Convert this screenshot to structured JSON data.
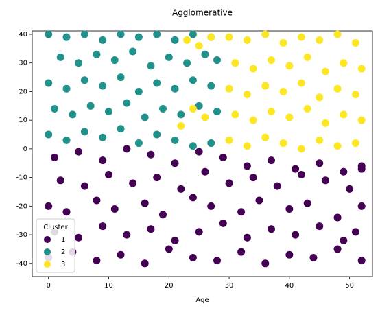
{
  "chart_data": {
    "type": "scatter",
    "title": "Agglomerative",
    "x_label": "Age",
    "xlim": [
      -2.7,
      53.8
    ],
    "ylim": [
      -44.6,
      41.2
    ],
    "xticks": [
      0,
      10,
      20,
      30,
      40,
      50
    ],
    "yticks": [
      -40,
      -30,
      -20,
      -10,
      0,
      10,
      20,
      30,
      40
    ],
    "legend_title": "Cluster",
    "legend_position": "lower left",
    "series": [
      {
        "name": "1",
        "color": "#440154",
        "x": [
          0,
          4,
          8,
          12,
          16,
          20,
          24,
          28,
          32,
          36,
          40,
          44,
          48,
          52,
          1,
          5,
          9,
          13,
          17,
          21,
          25,
          29,
          33,
          37,
          41,
          45,
          49,
          51,
          0,
          3,
          8,
          11,
          16,
          19,
          24,
          27,
          32,
          35,
          40,
          43,
          48,
          52,
          2,
          6,
          10,
          14,
          18,
          22,
          26,
          30,
          34,
          38,
          42,
          46,
          50,
          52,
          1,
          5,
          9,
          13,
          17,
          21,
          25,
          29,
          33,
          37,
          41,
          45,
          49,
          52
        ],
        "y": [
          -38,
          -36,
          -39,
          -37,
          -40,
          -35,
          -38,
          -39,
          -36,
          -40,
          -37,
          -38,
          -35,
          -39,
          -29,
          -31,
          -27,
          -30,
          -28,
          -32,
          -29,
          -26,
          -31,
          -28,
          -30,
          -27,
          -32,
          -29,
          -20,
          -22,
          -18,
          -21,
          -19,
          -23,
          -17,
          -20,
          -22,
          -18,
          -21,
          -19,
          -24,
          -20,
          -11,
          -13,
          -9,
          -12,
          -10,
          -14,
          -8,
          -12,
          -10,
          -13,
          -9,
          -11,
          -14,
          -7,
          -3,
          -1,
          -4,
          0,
          -2,
          -5,
          -1,
          -3,
          -6,
          -4,
          -7,
          -5,
          -8,
          -6
        ]
      },
      {
        "name": "2",
        "color": "#21918c",
        "x": [
          0,
          3,
          6,
          9,
          12,
          15,
          18,
          21,
          24,
          27,
          1,
          4,
          7,
          10,
          13,
          16,
          19,
          22,
          25,
          28,
          0,
          3,
          6,
          9,
          12,
          15,
          18,
          21,
          24,
          27,
          2,
          5,
          8,
          11,
          14,
          17,
          20,
          23,
          26,
          28,
          0,
          3,
          6,
          9,
          12,
          15,
          18,
          21,
          24,
          27
        ],
        "y": [
          5,
          3,
          6,
          4,
          7,
          2,
          5,
          3,
          1,
          2,
          14,
          12,
          15,
          13,
          16,
          11,
          14,
          12,
          15,
          13,
          23,
          21,
          24,
          22,
          25,
          20,
          23,
          21,
          24,
          22,
          32,
          30,
          33,
          31,
          34,
          29,
          32,
          30,
          33,
          31,
          40,
          39,
          40,
          38,
          40,
          39,
          40,
          38,
          40,
          39
        ]
      },
      {
        "name": "3",
        "color": "#fde725",
        "x": [
          30,
          33,
          36,
          39,
          42,
          45,
          48,
          51,
          31,
          34,
          37,
          40,
          43,
          46,
          49,
          52,
          30,
          33,
          36,
          39,
          42,
          45,
          48,
          51,
          31,
          34,
          37,
          40,
          43,
          46,
          49,
          52,
          30,
          33,
          36,
          39,
          42,
          45,
          48,
          51,
          22,
          24,
          26,
          23,
          25,
          27
        ],
        "y": [
          3,
          1,
          4,
          2,
          0,
          3,
          1,
          2,
          12,
          10,
          13,
          11,
          14,
          9,
          12,
          10,
          21,
          19,
          22,
          20,
          23,
          18,
          21,
          19,
          30,
          28,
          31,
          29,
          32,
          27,
          30,
          28,
          39,
          38,
          40,
          37,
          39,
          38,
          40,
          37,
          8,
          14,
          11,
          38,
          36,
          39
        ]
      }
    ]
  }
}
